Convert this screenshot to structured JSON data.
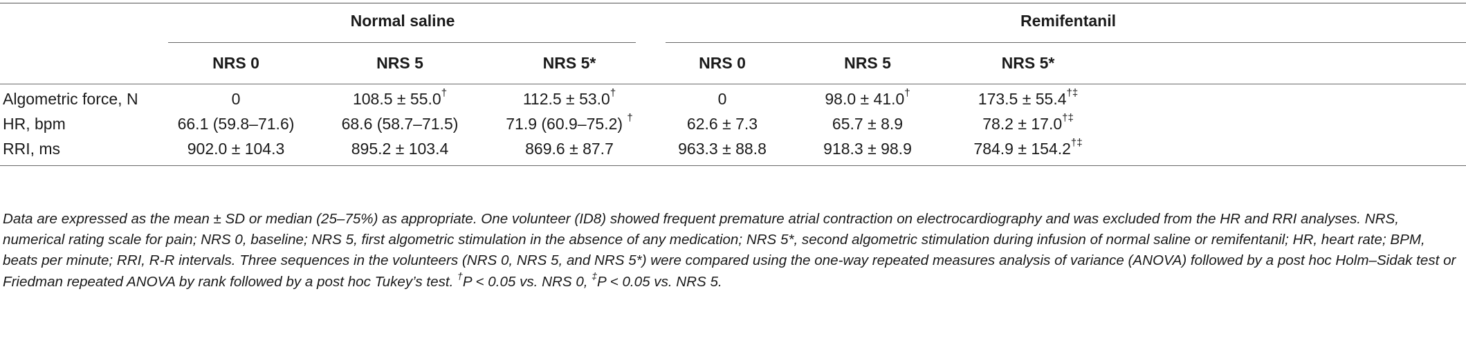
{
  "table": {
    "group_headers": [
      "Normal saline",
      "Remifentanil"
    ],
    "column_headers": [
      "NRS 0",
      "NRS 5",
      "NRS 5*",
      "NRS 0",
      "NRS 5",
      "NRS 5*"
    ],
    "rows": [
      {
        "label": "Algometric force, N",
        "cells": [
          {
            "value": "0",
            "sup": ""
          },
          {
            "value": "108.5 ± 55.0",
            "sup": "†"
          },
          {
            "value": "112.5 ± 53.0",
            "sup": "†"
          },
          {
            "value": "0",
            "sup": ""
          },
          {
            "value": "98.0 ± 41.0",
            "sup": "†"
          },
          {
            "value": "173.5 ± 55.4",
            "sup": "†‡"
          }
        ]
      },
      {
        "label": "HR, bpm",
        "cells": [
          {
            "value": "66.1 (59.8–71.6)",
            "sup": ""
          },
          {
            "value": "68.6 (58.7–71.5)",
            "sup": ""
          },
          {
            "value": "71.9 (60.9–75.2) ",
            "sup": "†"
          },
          {
            "value": "62.6 ± 7.3",
            "sup": ""
          },
          {
            "value": "65.7 ± 8.9",
            "sup": ""
          },
          {
            "value": "78.2 ± 17.0",
            "sup": "†‡"
          }
        ]
      },
      {
        "label": "RRI, ms",
        "cells": [
          {
            "value": "902.0 ± 104.3",
            "sup": ""
          },
          {
            "value": "895.2 ± 103.4",
            "sup": ""
          },
          {
            "value": "869.6 ± 87.7",
            "sup": ""
          },
          {
            "value": "963.3 ± 88.8",
            "sup": ""
          },
          {
            "value": "918.3 ± 98.9",
            "sup": ""
          },
          {
            "value": "784.9 ± 154.2",
            "sup": "†‡"
          }
        ]
      }
    ]
  },
  "footnote": {
    "text": "Data are expressed as the mean ± SD or median (25–75%) as appropriate. One volunteer (ID8) showed frequent premature atrial contraction on electrocardiography and was excluded from the HR and RRI analyses. NRS, numerical rating scale for pain; NRS 0, baseline; NRS 5, first algometric stimulation in the absence of any medication; NRS 5*, second algometric stimulation during infusion of normal saline or remifentanil; HR, heart rate; BPM, beats per minute; RRI, R-R intervals. Three sequences in the volunteers (NRS 0, NRS 5, and NRS 5*) were compared using the one-way repeated measures analysis of variance (ANOVA) followed by a post hoc Holm–Sidak test or Friedman repeated ANOVA by rank followed by a post hoc Tukey’s test. ",
    "dagger": "†",
    "dagger_text": "P < 0.05 vs. NRS 0, ",
    "ddagger": "‡",
    "ddagger_text": "P < 0.05 vs. NRS 5."
  }
}
